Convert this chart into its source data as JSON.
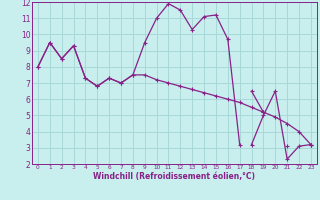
{
  "xlabel": "Windchill (Refroidissement éolien,°C)",
  "ylabel": "",
  "background_color": "#c8eeed",
  "grid_color": "#a8d8d8",
  "line_color": "#882288",
  "xlim": [
    -0.5,
    23.5
  ],
  "ylim": [
    2,
    12
  ],
  "xticks": [
    0,
    1,
    2,
    3,
    4,
    5,
    6,
    7,
    8,
    9,
    10,
    11,
    12,
    13,
    14,
    15,
    16,
    17,
    18,
    19,
    20,
    21,
    22,
    23
  ],
  "yticks": [
    2,
    3,
    4,
    5,
    6,
    7,
    8,
    9,
    10,
    11,
    12
  ],
  "series": [
    [
      8.0,
      9.5,
      8.5,
      9.3,
      7.3,
      6.8,
      7.3,
      7.0,
      7.5,
      7.5,
      7.2,
      7.0,
      6.8,
      6.6,
      6.4,
      6.2,
      6.0,
      5.8,
      5.5,
      5.2,
      4.9,
      4.5,
      4.0,
      3.2
    ],
    [
      8.0,
      9.5,
      8.5,
      9.3,
      7.3,
      6.8,
      7.3,
      7.0,
      7.5,
      9.5,
      11.0,
      11.9,
      11.5,
      10.3,
      11.1,
      11.2,
      9.7,
      3.2,
      null,
      null,
      null,
      null,
      null,
      null
    ],
    [
      null,
      null,
      null,
      null,
      null,
      null,
      null,
      null,
      null,
      null,
      null,
      null,
      null,
      null,
      null,
      null,
      null,
      null,
      3.2,
      5.0,
      6.5,
      2.3,
      3.1,
      3.2
    ],
    [
      null,
      null,
      null,
      null,
      null,
      null,
      null,
      null,
      null,
      null,
      null,
      null,
      null,
      null,
      null,
      null,
      null,
      null,
      6.5,
      5.2,
      null,
      3.1,
      null,
      3.2
    ]
  ]
}
